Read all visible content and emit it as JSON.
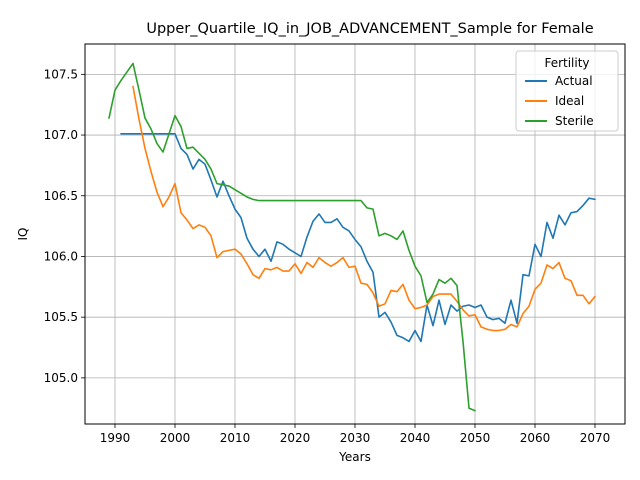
{
  "chart_data": {
    "type": "line",
    "title": "Upper_Quartile_IQ_in_JOB_ADVANCEMENT_Sample for Female",
    "xlabel": "Years",
    "ylabel": "IQ",
    "xlim": [
      1985,
      2075
    ],
    "ylim": [
      104.62,
      107.75
    ],
    "xticks": [
      1990,
      2000,
      2010,
      2020,
      2030,
      2040,
      2050,
      2060,
      2070
    ],
    "yticks": [
      105.0,
      105.5,
      106.0,
      106.5,
      107.0,
      107.5
    ],
    "xtick_labels": [
      "1990",
      "2000",
      "2010",
      "2020",
      "2030",
      "2040",
      "2050",
      "2060",
      "2070"
    ],
    "ytick_labels": [
      "105.0",
      "105.5",
      "106.0",
      "106.5",
      "107.0",
      "107.5"
    ],
    "grid": true,
    "legend": {
      "title": "Fertility",
      "placement": "top-right"
    },
    "series": [
      {
        "name": "Actual",
        "color": "#1f77b4",
        "x": [
          1991,
          1992,
          1993,
          1994,
          1995,
          1996,
          1997,
          1998,
          1999,
          2000,
          2001,
          2002,
          2003,
          2004,
          2005,
          2006,
          2007,
          2008,
          2009,
          2010,
          2011,
          2012,
          2013,
          2014,
          2015,
          2016,
          2017,
          2018,
          2019,
          2020,
          2021,
          2022,
          2023,
          2024,
          2025,
          2026,
          2027,
          2028,
          2029,
          2030,
          2031,
          2032,
          2033,
          2034,
          2035,
          2036,
          2037,
          2038,
          2039,
          2040,
          2041,
          2042,
          2043,
          2044,
          2045,
          2046,
          2047,
          2048,
          2049,
          2050,
          2051,
          2052,
          2053,
          2054,
          2055,
          2056,
          2057,
          2058,
          2059,
          2060,
          2061,
          2062,
          2063,
          2064,
          2065,
          2066,
          2067,
          2068,
          2069,
          2070
        ],
        "y": [
          107.01,
          107.01,
          107.01,
          107.01,
          107.01,
          107.01,
          107.01,
          107.01,
          107.01,
          107.01,
          106.89,
          106.84,
          106.72,
          106.8,
          106.76,
          106.63,
          106.49,
          106.62,
          106.5,
          106.39,
          106.32,
          106.15,
          106.06,
          106.0,
          106.06,
          105.96,
          106.12,
          106.1,
          106.06,
          106.03,
          106.0,
          106.16,
          106.29,
          106.35,
          106.28,
          106.28,
          106.31,
          106.24,
          106.21,
          106.14,
          106.08,
          105.96,
          105.87,
          105.5,
          105.54,
          105.46,
          105.35,
          105.33,
          105.3,
          105.39,
          105.3,
          105.6,
          105.43,
          105.64,
          105.44,
          105.6,
          105.55,
          105.59,
          105.6,
          105.58,
          105.6,
          105.5,
          105.48,
          105.49,
          105.45,
          105.64,
          105.45,
          105.85,
          105.84,
          106.1,
          106.0,
          106.28,
          106.15,
          106.34,
          106.26,
          106.36,
          106.37,
          106.42,
          106.48,
          106.47
        ]
      },
      {
        "name": "Ideal",
        "color": "#ff7f0e",
        "x": [
          1993,
          1994,
          1995,
          1996,
          1997,
          1998,
          1999,
          2000,
          2001,
          2002,
          2003,
          2004,
          2005,
          2006,
          2007,
          2008,
          2009,
          2010,
          2011,
          2012,
          2013,
          2014,
          2015,
          2016,
          2017,
          2018,
          2019,
          2020,
          2021,
          2022,
          2023,
          2024,
          2025,
          2026,
          2027,
          2028,
          2029,
          2030,
          2031,
          2032,
          2033,
          2034,
          2035,
          2036,
          2037,
          2038,
          2039,
          2040,
          2041,
          2042,
          2043,
          2044,
          2045,
          2046,
          2047,
          2048,
          2049,
          2050,
          2051,
          2052,
          2053,
          2054,
          2055,
          2056,
          2057,
          2058,
          2059,
          2060,
          2061,
          2062,
          2063,
          2064,
          2065,
          2066,
          2067,
          2068,
          2069,
          2070
        ],
        "y": [
          107.4,
          107.13,
          106.89,
          106.7,
          106.53,
          106.41,
          106.49,
          106.6,
          106.36,
          106.3,
          106.23,
          106.26,
          106.24,
          106.17,
          105.99,
          106.04,
          106.05,
          106.06,
          106.02,
          105.94,
          105.85,
          105.82,
          105.9,
          105.89,
          105.91,
          105.88,
          105.88,
          105.94,
          105.86,
          105.95,
          105.91,
          105.99,
          105.95,
          105.92,
          105.95,
          105.99,
          105.91,
          105.92,
          105.78,
          105.77,
          105.7,
          105.59,
          105.61,
          105.72,
          105.71,
          105.77,
          105.64,
          105.57,
          105.58,
          105.6,
          105.67,
          105.69,
          105.69,
          105.69,
          105.63,
          105.56,
          105.51,
          105.52,
          105.42,
          105.4,
          105.39,
          105.39,
          105.4,
          105.44,
          105.42,
          105.53,
          105.59,
          105.73,
          105.78,
          105.93,
          105.9,
          105.95,
          105.82,
          105.8,
          105.68,
          105.68,
          105.61,
          105.67
        ]
      },
      {
        "name": "Sterile",
        "color": "#2ca02c",
        "x": [
          1989,
          1990,
          1991,
          1992,
          1993,
          1994,
          1995,
          1996,
          1997,
          1998,
          1999,
          2000,
          2001,
          2002,
          2003,
          2004,
          2005,
          2006,
          2007,
          2008,
          2009,
          2010,
          2011,
          2012,
          2013,
          2014,
          2015,
          2016,
          2017,
          2018,
          2019,
          2020,
          2021,
          2022,
          2023,
          2024,
          2025,
          2026,
          2027,
          2028,
          2029,
          2030,
          2031,
          2032,
          2033,
          2034,
          2035,
          2036,
          2037,
          2038,
          2039,
          2040,
          2041,
          2042,
          2043,
          2044,
          2045,
          2046,
          2047,
          2048,
          2049,
          2050
        ],
        "y": [
          107.14,
          107.37,
          107.45,
          107.52,
          107.59,
          107.37,
          107.14,
          107.05,
          106.93,
          106.86,
          107.01,
          107.16,
          107.07,
          106.89,
          106.9,
          106.85,
          106.8,
          106.72,
          106.6,
          106.59,
          106.58,
          106.55,
          106.52,
          106.49,
          106.47,
          106.46,
          106.46,
          106.46,
          106.46,
          106.46,
          106.46,
          106.46,
          106.46,
          106.46,
          106.46,
          106.46,
          106.46,
          106.46,
          106.46,
          106.46,
          106.46,
          106.46,
          106.46,
          106.4,
          106.39,
          106.17,
          106.19,
          106.17,
          106.14,
          106.21,
          106.05,
          105.92,
          105.84,
          105.62,
          105.69,
          105.81,
          105.78,
          105.82,
          105.76,
          105.3,
          104.75,
          104.73
        ]
      }
    ]
  }
}
